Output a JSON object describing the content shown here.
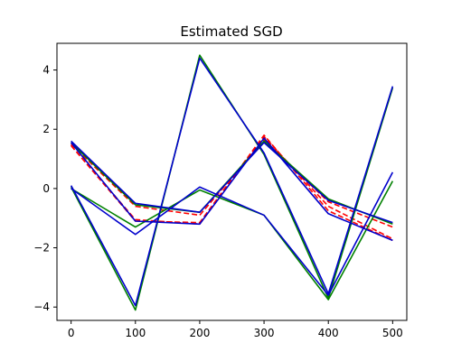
{
  "chart_data": {
    "type": "line",
    "title": "Estimated SGD",
    "xlabel": "",
    "ylabel": "",
    "x": [
      0,
      100,
      200,
      300,
      400,
      500
    ],
    "xlim": [
      -22,
      522
    ],
    "ylim": [
      -4.45,
      4.9
    ],
    "xticks": [
      "0",
      "100",
      "200",
      "300",
      "400",
      "500"
    ],
    "yticks": [
      "−4",
      "−2",
      "0",
      "2",
      "4"
    ],
    "ytick_values": [
      -4,
      -2,
      0,
      2,
      4
    ],
    "grid": false,
    "legend": "none",
    "series": [
      {
        "color": "#ff0000",
        "dash": true,
        "values": [
          1.45,
          -1.1,
          -1.15,
          1.8,
          -0.75,
          -1.75
        ]
      },
      {
        "color": "#ff0000",
        "dash": true,
        "values": [
          1.5,
          -0.6,
          -0.9,
          1.65,
          -0.45,
          -1.3
        ]
      },
      {
        "color": "#ff0000",
        "dash": true,
        "values": [
          1.45,
          -1.05,
          -1.2,
          1.75,
          -0.6,
          -1.7
        ]
      },
      {
        "color": "#008000",
        "dash": false,
        "values": [
          1.55,
          -0.55,
          -0.8,
          1.6,
          -0.35,
          -1.2
        ]
      },
      {
        "color": "#008000",
        "dash": false,
        "values": [
          0.05,
          -4.1,
          4.5,
          1.15,
          -3.7,
          3.4
        ]
      },
      {
        "color": "#008000",
        "dash": false,
        "values": [
          0.0,
          -1.3,
          -0.05,
          -0.9,
          -3.75,
          0.25
        ]
      },
      {
        "color": "#0000cc",
        "dash": false,
        "values": [
          1.6,
          -0.5,
          -0.8,
          1.55,
          -0.4,
          -1.15
        ]
      },
      {
        "color": "#0000cc",
        "dash": false,
        "values": [
          0.1,
          -3.95,
          4.4,
          1.2,
          -3.55,
          3.45
        ]
      },
      {
        "color": "#0000cc",
        "dash": false,
        "values": [
          0.0,
          -1.55,
          0.05,
          -0.9,
          -3.6,
          0.55
        ]
      },
      {
        "color": "#0000cc",
        "dash": false,
        "values": [
          1.55,
          -1.1,
          -1.2,
          1.7,
          -0.85,
          -1.75
        ]
      }
    ]
  }
}
